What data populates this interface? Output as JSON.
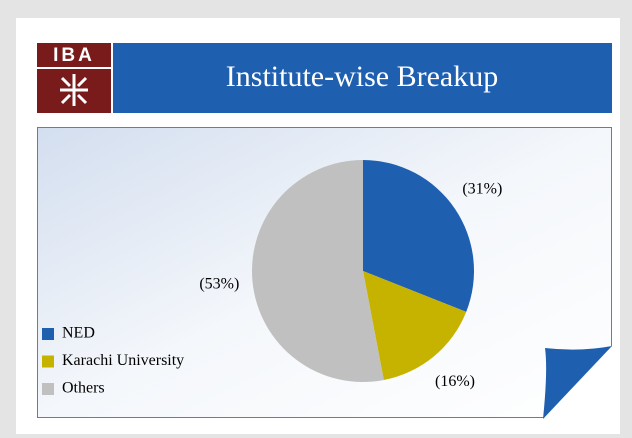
{
  "logo": {
    "text": "IBA"
  },
  "chart_data": {
    "type": "pie",
    "title": "Institute-wise Breakup",
    "categories": [
      "NED",
      "Karachi University",
      "Others"
    ],
    "values": [
      31,
      16,
      53
    ],
    "value_labels": [
      "(31%)",
      "(16%)",
      "(53%)"
    ],
    "colors": [
      "#1f5fb0",
      "#c6b300",
      "#c0c0c0"
    ],
    "legend": "bottom-left"
  }
}
